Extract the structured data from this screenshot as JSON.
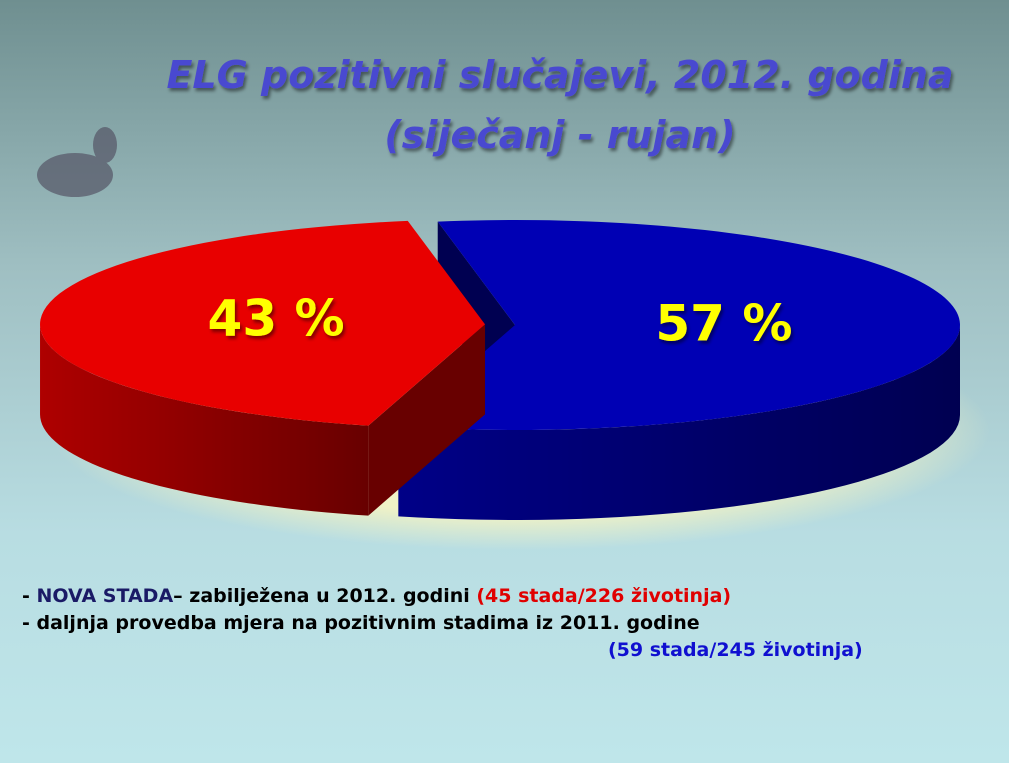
{
  "chart_data": {
    "type": "pie",
    "title": "ELG pozitivni slučajevi, 2012. godina",
    "subtitle": "(siječanj - rujan)",
    "values": [
      57,
      43
    ],
    "value_labels": [
      "57 %",
      "43 %"
    ],
    "colors": [
      "#0000b4",
      "#e80000"
    ],
    "annotations": [
      [
        {
          "text": "- ",
          "color": "#000000"
        },
        {
          "text": "NOVA STADA",
          "color": "#1a1a66"
        },
        {
          "text": "– zabilježena u 2012. godini ",
          "color": "#000000"
        },
        {
          "text": "(45 stada/226 životinja)",
          "color": "#e00000"
        }
      ],
      [
        {
          "text": "- daljnja provedba mjera na pozitivnim stadima iz 2011. godine",
          "color": "#000000"
        }
      ],
      [
        {
          "text": "(59 stada/245 životinja)",
          "color": "#1010d0"
        }
      ]
    ]
  }
}
